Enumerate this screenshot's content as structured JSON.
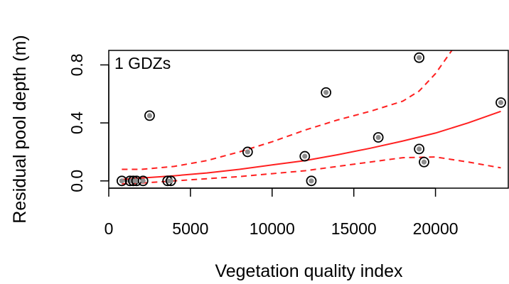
{
  "chart_data": {
    "type": "scatter",
    "title": "",
    "xlabel": "Vegetation quality index",
    "ylabel": "Residual pool depth (m)",
    "panel_label": "1 GDZs",
    "xlim": [
      0,
      24500
    ],
    "ylim": [
      -0.05,
      0.9
    ],
    "x_ticks": [
      0,
      5000,
      10000,
      15000,
      20000
    ],
    "y_ticks": [
      0.0,
      0.4,
      0.8
    ],
    "x_tick_labels": [
      "0",
      "5000",
      "10000",
      "15000",
      "20000"
    ],
    "y_tick_labels": [
      "0.0",
      "0.4",
      "0.8"
    ],
    "points": [
      {
        "x": 800,
        "y": 0.0
      },
      {
        "x": 1300,
        "y": 0.0
      },
      {
        "x": 1500,
        "y": 0.0
      },
      {
        "x": 1700,
        "y": 0.0
      },
      {
        "x": 2100,
        "y": 0.0
      },
      {
        "x": 2500,
        "y": 0.45
      },
      {
        "x": 3600,
        "y": 0.0
      },
      {
        "x": 3800,
        "y": 0.0
      },
      {
        "x": 8500,
        "y": 0.2
      },
      {
        "x": 12000,
        "y": 0.17
      },
      {
        "x": 12400,
        "y": 0.0
      },
      {
        "x": 13300,
        "y": 0.61
      },
      {
        "x": 16500,
        "y": 0.3
      },
      {
        "x": 19000,
        "y": 0.85
      },
      {
        "x": 19000,
        "y": 0.22
      },
      {
        "x": 19300,
        "y": 0.13
      },
      {
        "x": 24000,
        "y": 0.54
      }
    ],
    "fit": {
      "color": "#ff2020",
      "x": [
        800,
        2000,
        4000,
        6000,
        8000,
        10000,
        12000,
        14000,
        16000,
        18000,
        20000,
        22000,
        24000
      ],
      "y": [
        0.01,
        0.02,
        0.035,
        0.055,
        0.08,
        0.11,
        0.14,
        0.18,
        0.225,
        0.275,
        0.33,
        0.4,
        0.48
      ]
    },
    "upper_band": {
      "color": "#ff2020",
      "style": "dashed",
      "x": [
        800,
        2000,
        4000,
        6000,
        8000,
        10000,
        12000,
        14000,
        16000,
        18000,
        19000,
        20000,
        21000
      ],
      "y": [
        0.08,
        0.08,
        0.1,
        0.14,
        0.2,
        0.27,
        0.35,
        0.42,
        0.48,
        0.55,
        0.62,
        0.74,
        0.9
      ]
    },
    "lower_band": {
      "color": "#ff2020",
      "style": "dashed",
      "x": [
        800,
        2000,
        4000,
        6000,
        8000,
        10000,
        12000,
        14000,
        16000,
        18000,
        20000,
        22000,
        24000
      ],
      "y": [
        -0.02,
        -0.015,
        0.0,
        0.015,
        0.03,
        0.05,
        0.07,
        0.1,
        0.13,
        0.16,
        0.165,
        0.13,
        0.09
      ]
    },
    "grid": false,
    "legend": "none"
  }
}
